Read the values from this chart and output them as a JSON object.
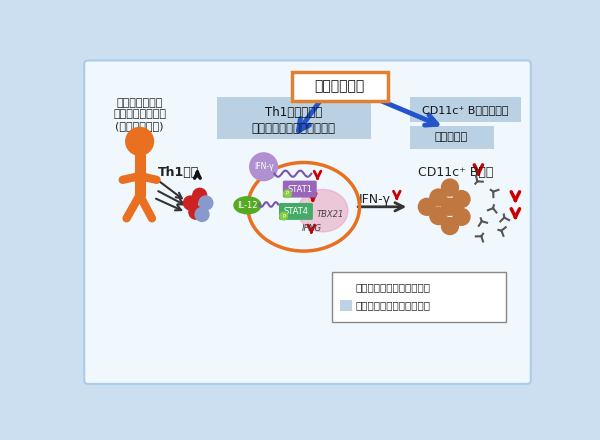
{
  "bg_color": "#ccdff0",
  "bg_inner_color": "#f0f8fd",
  "left_text_line1": "血液浄化療法の",
  "left_text_line2": "レスポンダー患者",
  "left_text_line3": "(多発性硬化症)",
  "center_box_line1": "Th1細胞内での",
  "center_box_line2": "炎症関連遺伝子発現の低下",
  "center_box_color": "#a8c4dc",
  "top_box_text": "血液浄化療法",
  "top_box_border_color": "#e08030",
  "top_box_bg": "#ffffff",
  "right_box1_text": "CD11c⁺ B細胞の減少",
  "right_box2_text": "抗体の除去",
  "right_box_color": "#a8c4dc",
  "ifn_label": "IFN-γ",
  "legend_text1": "：血液浄化療法による変化",
  "legend_text2": "：血液浄化療法の作用機序",
  "orange_color": "#e87020",
  "red_color": "#cc0000",
  "blue_arrow_color": "#2255cc",
  "il12_color": "#55aa22",
  "stat1_color": "#9966bb",
  "stat4_color": "#44aa66",
  "pink_color": "#e8a0bb",
  "brown_color": "#c07840",
  "purple_receptor": "#7755aa",
  "ifng_circle_color": "#b090d0"
}
